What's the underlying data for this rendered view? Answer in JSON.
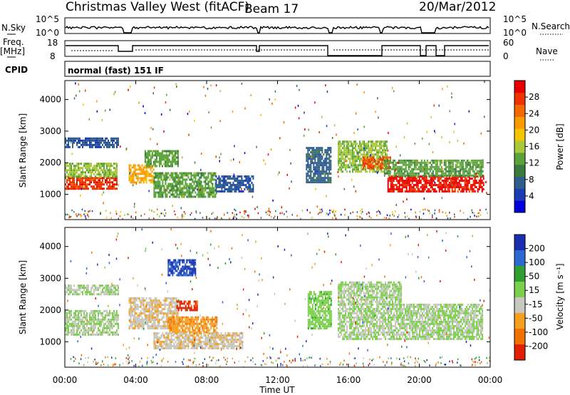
{
  "header": {
    "title": "Christmas Valley West (fitACF)",
    "beam": "Beam 17",
    "date": "20/Mar/2012"
  },
  "top_panels": {
    "nsky_label": "N.Sky",
    "nsky_ticks": [
      "10^5",
      "10^0"
    ],
    "nsearch_label": "N.Search",
    "nsearch_ticks": [
      "10^5",
      "10^0"
    ],
    "freq_label": "Freq.",
    "freq_unit": "[MHz]",
    "freq_ticks": [
      "18",
      "8"
    ],
    "nave_label": "Nave",
    "nave_ticks": [
      "60",
      "0"
    ],
    "cpid_label": "CPID",
    "cpid_text": "normal (fast) 151 IF"
  },
  "time_axis": {
    "label": "Time UT",
    "ticks": [
      "00:00",
      "04:00",
      "08:00",
      "12:00",
      "16:00",
      "20:00",
      "00:00"
    ]
  },
  "colorbars": {
    "power": {
      "label": "Power [dB]",
      "ticks": [
        "28",
        "24",
        "20",
        "16",
        "12",
        "8",
        "4"
      ],
      "colors": [
        "#0000dd",
        "#1a3cb4",
        "#2f5d8c",
        "#3a7a3e",
        "#5aa33a",
        "#a9c83a",
        "#f5c400",
        "#f89a00",
        "#f56800",
        "#ee3300",
        "#e80000"
      ]
    },
    "velocity": {
      "label": "Velocity [m s⁻¹]",
      "ticks": [
        "200",
        "100",
        "50",
        "15",
        "-15",
        "-50",
        "-100",
        "-200"
      ],
      "colors": [
        "#1a2fb0",
        "#2a6ad0",
        "#2fa02f",
        "#7ad04a",
        "#c8c8c0",
        "#f5a020",
        "#f07000",
        "#e02000"
      ]
    }
  },
  "chart_data": [
    {
      "type": "heatmap",
      "name": "power",
      "xlabel": "Time UT",
      "ylabel": "Slant Range [km]",
      "xlim": [
        0,
        24
      ],
      "ylim": [
        200,
        4600
      ],
      "yticks": [
        1000,
        2000,
        3000,
        4000
      ],
      "color_scale": {
        "label": "Power [dB]",
        "min": 0,
        "max": 30
      },
      "regions": [
        {
          "t": [
            0.0,
            2.9
          ],
          "range": [
            1150,
            1550
          ],
          "value": 26
        },
        {
          "t": [
            0.0,
            2.9
          ],
          "range": [
            1550,
            2000
          ],
          "value": 14
        },
        {
          "t": [
            0.0,
            3.0
          ],
          "range": [
            2500,
            2800
          ],
          "value": 6
        },
        {
          "t": [
            3.6,
            5.0
          ],
          "range": [
            1350,
            1950
          ],
          "value": 20
        },
        {
          "t": [
            4.5,
            6.4
          ],
          "range": [
            1900,
            2400
          ],
          "value": 12
        },
        {
          "t": [
            5.0,
            8.5
          ],
          "range": [
            900,
            1700
          ],
          "value": 12
        },
        {
          "t": [
            8.5,
            10.6
          ],
          "range": [
            1100,
            1600
          ],
          "value": 6
        },
        {
          "t": [
            13.6,
            15.0
          ],
          "range": [
            1400,
            2500
          ],
          "value": 7
        },
        {
          "t": [
            15.4,
            18.2
          ],
          "range": [
            1700,
            2700
          ],
          "value": 14
        },
        {
          "t": [
            16.8,
            18.4
          ],
          "range": [
            1800,
            2200
          ],
          "value": 25
        },
        {
          "t": [
            18.2,
            23.6
          ],
          "range": [
            1100,
            1600
          ],
          "value": 28
        },
        {
          "t": [
            18.0,
            23.6
          ],
          "range": [
            1600,
            2100
          ],
          "value": 12
        }
      ]
    },
    {
      "type": "heatmap",
      "name": "velocity",
      "xlabel": "Time UT",
      "ylabel": "Slant Range [km]",
      "xlim": [
        0,
        24
      ],
      "ylim": [
        200,
        4600
      ],
      "yticks": [
        1000,
        2000,
        3000,
        4000
      ],
      "color_scale": {
        "label": "Velocity [m s⁻¹]",
        "min": -200,
        "max": 200
      },
      "regions": [
        {
          "t": [
            0.0,
            3.0
          ],
          "range": [
            1200,
            2000
          ],
          "value": 0
        },
        {
          "t": [
            0.0,
            3.0
          ],
          "range": [
            2500,
            2800
          ],
          "value": 0
        },
        {
          "t": [
            3.6,
            6.4
          ],
          "range": [
            1400,
            2400
          ],
          "value": -40
        },
        {
          "t": [
            5.8,
            7.4
          ],
          "range": [
            3100,
            3600
          ],
          "value": 150
        },
        {
          "t": [
            5.8,
            8.6
          ],
          "range": [
            1300,
            1800
          ],
          "value": -90
        },
        {
          "t": [
            6.3,
            7.5
          ],
          "range": [
            2000,
            2300
          ],
          "value": -170
        },
        {
          "t": [
            5.0,
            10.0
          ],
          "range": [
            800,
            1300
          ],
          "value": -40
        },
        {
          "t": [
            13.7,
            15.0
          ],
          "range": [
            1400,
            2600
          ],
          "value": 30
        },
        {
          "t": [
            15.4,
            23.6
          ],
          "range": [
            1100,
            2200
          ],
          "value": 0
        },
        {
          "t": [
            15.4,
            19.0
          ],
          "range": [
            2200,
            2900
          ],
          "value": 0
        }
      ]
    }
  ]
}
